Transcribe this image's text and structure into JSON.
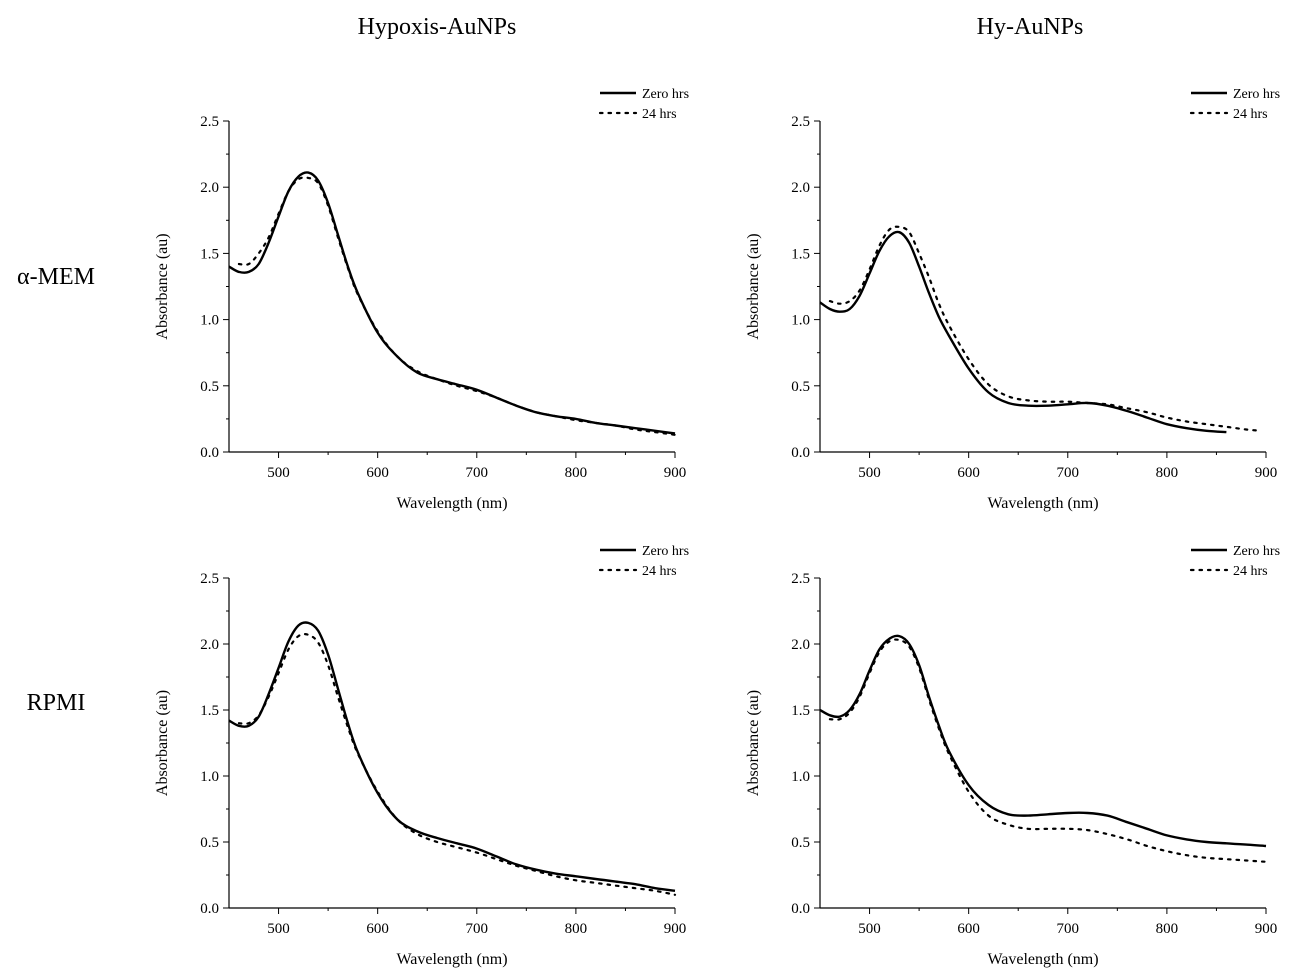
{
  "figure": {
    "column_headers": [
      "Hypoxis-AuNPs",
      "Hy-AuNPs"
    ],
    "row_labels": [
      "α-MEM",
      "RPMI"
    ]
  },
  "style": {
    "line_color": "#000000",
    "background": "#ffffff"
  },
  "chart_data": [
    {
      "type": "line",
      "panel": "α-MEM / Hypoxis-AuNPs",
      "xlabel": "Wavelength (nm)",
      "ylabel": "Absorbance (au)",
      "xlim": [
        450,
        900
      ],
      "ylim": [
        0,
        2.5
      ],
      "xticks": [
        500,
        600,
        700,
        800,
        900
      ],
      "yticks": [
        "0.0",
        "0.5",
        "1.0",
        "1.5",
        "2.0",
        "2.5"
      ],
      "legend_position": "top-right",
      "series": [
        {
          "name": "Zero hrs",
          "style": "solid",
          "x": [
            450,
            460,
            470,
            480,
            490,
            500,
            510,
            520,
            530,
            540,
            550,
            560,
            570,
            580,
            600,
            620,
            640,
            660,
            680,
            700,
            720,
            740,
            760,
            780,
            800,
            820,
            840,
            860,
            880,
            900
          ],
          "y": [
            1.4,
            1.36,
            1.36,
            1.42,
            1.58,
            1.78,
            1.97,
            2.08,
            2.11,
            2.05,
            1.88,
            1.64,
            1.4,
            1.2,
            0.9,
            0.72,
            0.6,
            0.55,
            0.51,
            0.47,
            0.41,
            0.35,
            0.3,
            0.27,
            0.25,
            0.22,
            0.2,
            0.18,
            0.16,
            0.14
          ]
        },
        {
          "name": "24 hrs",
          "style": "dotted",
          "x": [
            460,
            470,
            480,
            490,
            500,
            510,
            520,
            530,
            540,
            550,
            560,
            570,
            580,
            600,
            620,
            640,
            660,
            680,
            700,
            720,
            740,
            760,
            780,
            800,
            820,
            840,
            860,
            880,
            900
          ],
          "y": [
            1.42,
            1.42,
            1.5,
            1.62,
            1.8,
            1.97,
            2.06,
            2.07,
            2.03,
            1.86,
            1.62,
            1.39,
            1.19,
            0.91,
            0.72,
            0.61,
            0.55,
            0.5,
            0.46,
            0.41,
            0.35,
            0.3,
            0.27,
            0.24,
            0.22,
            0.2,
            0.17,
            0.15,
            0.13
          ]
        }
      ]
    },
    {
      "type": "line",
      "panel": "α-MEM / Hy-AuNPs",
      "xlabel": "Wavelength (nm)",
      "ylabel": "Absorbance (au)",
      "xlim": [
        450,
        900
      ],
      "ylim": [
        0,
        2.5
      ],
      "xticks": [
        500,
        600,
        700,
        800,
        900
      ],
      "yticks": [
        "0.0",
        "0.5",
        "1.0",
        "1.5",
        "2.0",
        "2.5"
      ],
      "legend_position": "top-right",
      "series": [
        {
          "name": "Zero hrs",
          "style": "solid",
          "x": [
            450,
            460,
            470,
            480,
            490,
            500,
            510,
            520,
            530,
            540,
            550,
            560,
            570,
            580,
            600,
            620,
            640,
            660,
            680,
            700,
            720,
            740,
            760,
            780,
            800,
            820,
            840,
            860
          ],
          "y": [
            1.13,
            1.08,
            1.06,
            1.08,
            1.18,
            1.35,
            1.52,
            1.63,
            1.66,
            1.58,
            1.4,
            1.2,
            1.02,
            0.88,
            0.63,
            0.45,
            0.37,
            0.35,
            0.35,
            0.36,
            0.37,
            0.35,
            0.31,
            0.26,
            0.21,
            0.18,
            0.16,
            0.15
          ]
        },
        {
          "name": "24 hrs",
          "style": "dotted",
          "x": [
            460,
            470,
            480,
            490,
            500,
            510,
            520,
            530,
            540,
            550,
            560,
            570,
            580,
            600,
            620,
            640,
            660,
            680,
            700,
            720,
            740,
            760,
            780,
            800,
            820,
            840,
            860,
            880,
            895
          ],
          "y": [
            1.14,
            1.12,
            1.14,
            1.22,
            1.38,
            1.56,
            1.68,
            1.7,
            1.66,
            1.5,
            1.32,
            1.12,
            0.96,
            0.7,
            0.51,
            0.42,
            0.39,
            0.38,
            0.38,
            0.37,
            0.36,
            0.33,
            0.3,
            0.26,
            0.23,
            0.21,
            0.19,
            0.17,
            0.16
          ]
        }
      ]
    },
    {
      "type": "line",
      "panel": "RPMI / Hypoxis-AuNPs",
      "xlabel": "Wavelength (nm)",
      "ylabel": "Absorbance (au)",
      "xlim": [
        450,
        900
      ],
      "ylim": [
        0,
        2.5
      ],
      "xticks": [
        500,
        600,
        700,
        800,
        900
      ],
      "yticks": [
        "0.0",
        "0.5",
        "1.0",
        "1.5",
        "2.0",
        "2.5"
      ],
      "legend_position": "top-right",
      "series": [
        {
          "name": "Zero hrs",
          "style": "solid",
          "x": [
            450,
            460,
            470,
            480,
            490,
            500,
            510,
            520,
            530,
            540,
            550,
            560,
            570,
            580,
            600,
            620,
            640,
            660,
            680,
            700,
            720,
            740,
            760,
            780,
            800,
            820,
            840,
            860,
            880,
            900
          ],
          "y": [
            1.42,
            1.38,
            1.38,
            1.45,
            1.62,
            1.82,
            2.02,
            2.14,
            2.16,
            2.1,
            1.92,
            1.66,
            1.4,
            1.18,
            0.87,
            0.67,
            0.58,
            0.53,
            0.49,
            0.45,
            0.39,
            0.33,
            0.29,
            0.26,
            0.24,
            0.22,
            0.2,
            0.18,
            0.15,
            0.13
          ]
        },
        {
          "name": "24 hrs",
          "style": "dotted",
          "x": [
            460,
            470,
            480,
            490,
            500,
            510,
            520,
            530,
            540,
            550,
            560,
            570,
            580,
            600,
            620,
            640,
            660,
            680,
            700,
            720,
            740,
            760,
            780,
            800,
            820,
            840,
            860,
            880,
            900
          ],
          "y": [
            1.4,
            1.4,
            1.46,
            1.6,
            1.78,
            1.96,
            2.06,
            2.07,
            2.01,
            1.84,
            1.6,
            1.37,
            1.17,
            0.88,
            0.67,
            0.56,
            0.5,
            0.46,
            0.42,
            0.37,
            0.32,
            0.28,
            0.24,
            0.21,
            0.19,
            0.17,
            0.15,
            0.13,
            0.1
          ]
        }
      ]
    },
    {
      "type": "line",
      "panel": "RPMI / Hy-AuNPs",
      "xlabel": "Wavelength (nm)",
      "ylabel": "Absorbance (au)",
      "xlim": [
        450,
        900
      ],
      "ylim": [
        0,
        2.5
      ],
      "xticks": [
        500,
        600,
        700,
        800,
        900
      ],
      "yticks": [
        "0.0",
        "0.5",
        "1.0",
        "1.5",
        "2.0",
        "2.5"
      ],
      "legend_position": "top-right",
      "series": [
        {
          "name": "Zero hrs",
          "style": "solid",
          "x": [
            450,
            460,
            470,
            480,
            490,
            500,
            510,
            520,
            530,
            540,
            550,
            560,
            570,
            580,
            600,
            620,
            640,
            660,
            680,
            700,
            720,
            740,
            760,
            780,
            800,
            820,
            840,
            860,
            880,
            900
          ],
          "y": [
            1.5,
            1.46,
            1.45,
            1.5,
            1.62,
            1.8,
            1.96,
            2.04,
            2.06,
            2.0,
            1.84,
            1.6,
            1.38,
            1.19,
            0.93,
            0.78,
            0.71,
            0.7,
            0.71,
            0.72,
            0.72,
            0.7,
            0.65,
            0.6,
            0.55,
            0.52,
            0.5,
            0.49,
            0.48,
            0.47
          ]
        },
        {
          "name": "24 hrs",
          "style": "dotted",
          "x": [
            460,
            470,
            480,
            490,
            500,
            510,
            520,
            530,
            540,
            550,
            560,
            570,
            580,
            600,
            620,
            640,
            660,
            680,
            700,
            720,
            740,
            760,
            780,
            800,
            820,
            840,
            860,
            880,
            900
          ],
          "y": [
            1.43,
            1.43,
            1.48,
            1.6,
            1.78,
            1.94,
            2.02,
            2.03,
            1.98,
            1.82,
            1.58,
            1.36,
            1.17,
            0.88,
            0.7,
            0.63,
            0.6,
            0.6,
            0.6,
            0.59,
            0.56,
            0.52,
            0.47,
            0.43,
            0.4,
            0.38,
            0.37,
            0.36,
            0.35
          ]
        }
      ]
    }
  ]
}
